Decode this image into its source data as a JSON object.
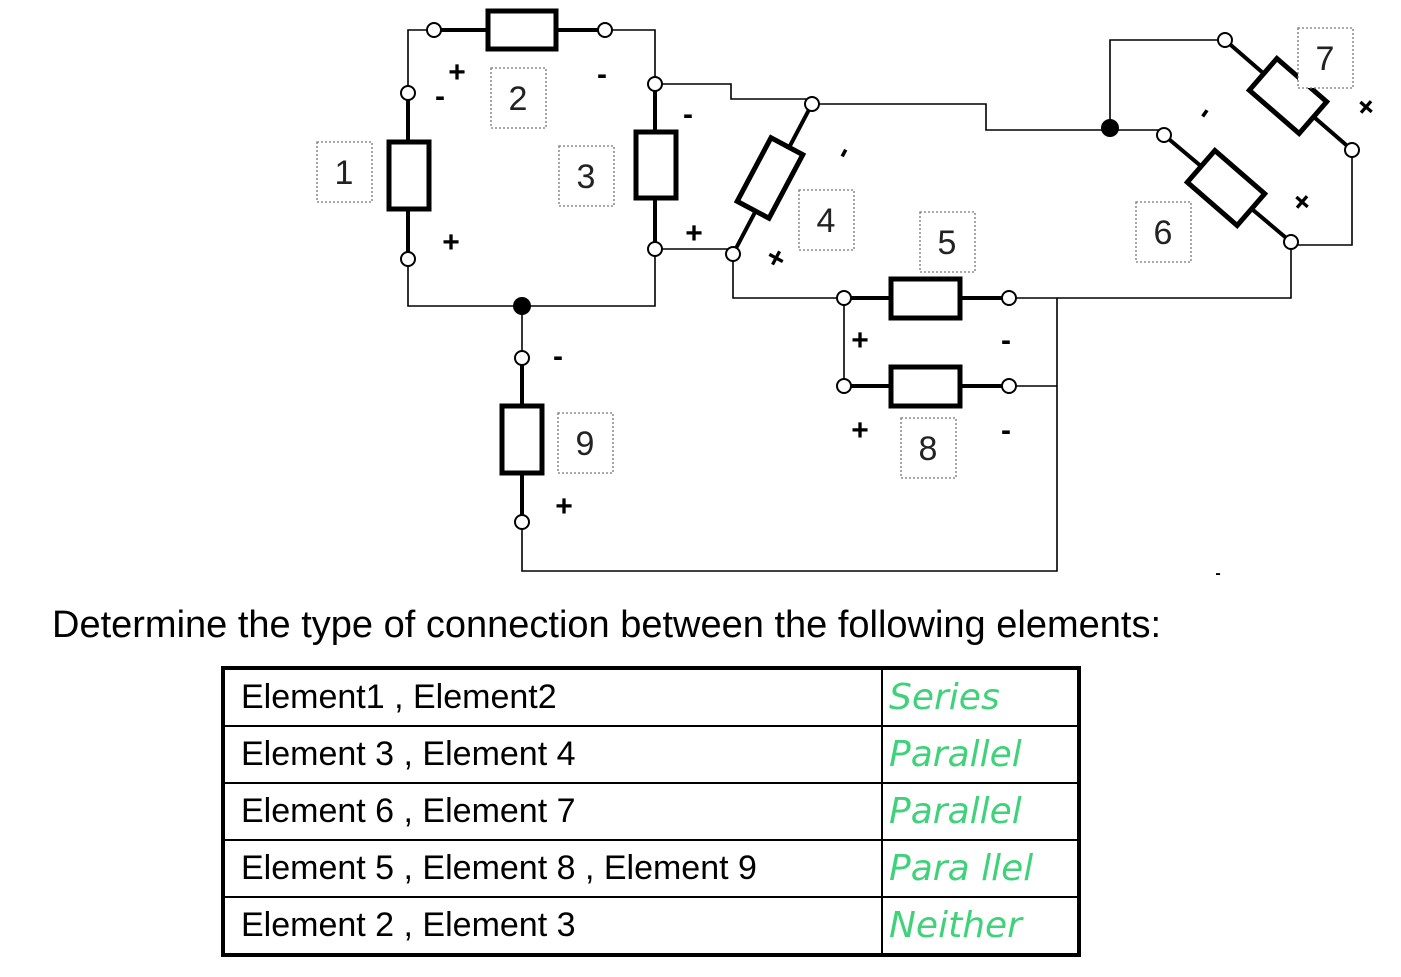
{
  "circuit": {
    "element_labels": [
      "1",
      "2",
      "3",
      "4",
      "5",
      "6",
      "7",
      "8",
      "9"
    ],
    "polarity": {
      "plus": "+",
      "minus": "-"
    }
  },
  "question": "Determine the type of connection between the following elements:",
  "table": {
    "rows": [
      {
        "pair": "Element1 , Element2",
        "answer": "Series"
      },
      {
        "pair": "Element 3 , Element 4",
        "answer": "Parallel"
      },
      {
        "pair": "Element 6 , Element 7",
        "answer": "Parallel"
      },
      {
        "pair": "Element 5 , Element 8 , Element 9",
        "answer": "Para llel"
      },
      {
        "pair": "Element 2 , Element 3",
        "answer": "Neither"
      }
    ],
    "answer_color": "#3fd27a"
  }
}
